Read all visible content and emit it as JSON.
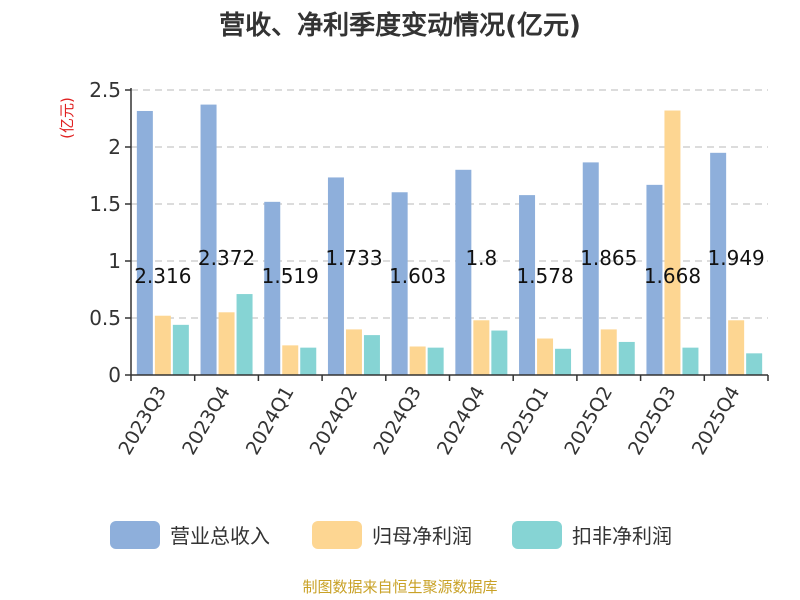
{
  "chart_data": {
    "type": "bar",
    "title": "营收、净利季度变动情况(亿元)",
    "y_unit": "(亿元)",
    "categories": [
      "2023Q3",
      "2023Q4",
      "2024Q1",
      "2024Q2",
      "2024Q3",
      "2024Q4",
      "2025Q1",
      "2025Q2",
      "2025Q3",
      "2025Q4"
    ],
    "series": [
      {
        "name": "营业总收入",
        "color": "#8eafdb",
        "values": [
          2.316,
          2.372,
          1.519,
          1.733,
          1.603,
          1.8,
          1.578,
          1.865,
          1.668,
          1.949
        ]
      },
      {
        "name": "归母净利润",
        "color": "#fdd692",
        "values": [
          0.52,
          0.55,
          0.26,
          0.4,
          0.25,
          0.48,
          0.32,
          0.4,
          2.32,
          0.48
        ]
      },
      {
        "name": "扣非净利润",
        "color": "#86d4d4",
        "values": [
          0.44,
          0.71,
          0.24,
          0.35,
          0.24,
          0.39,
          0.23,
          0.29,
          0.24,
          0.19
        ]
      }
    ],
    "data_labels": [
      "2.316",
      "2.372",
      "1.519",
      "1.733",
      "1.603",
      "1.8",
      "1.578",
      "1.865",
      "1.668",
      "1.949"
    ],
    "ylim": [
      0,
      2.5
    ],
    "y_ticks": [
      "0",
      "0.5",
      "1",
      "1.5",
      "2",
      "2.5"
    ],
    "grid": "horizontal-dashed",
    "legend_position": "bottom"
  },
  "source": "制图数据来自恒生聚源数据库"
}
